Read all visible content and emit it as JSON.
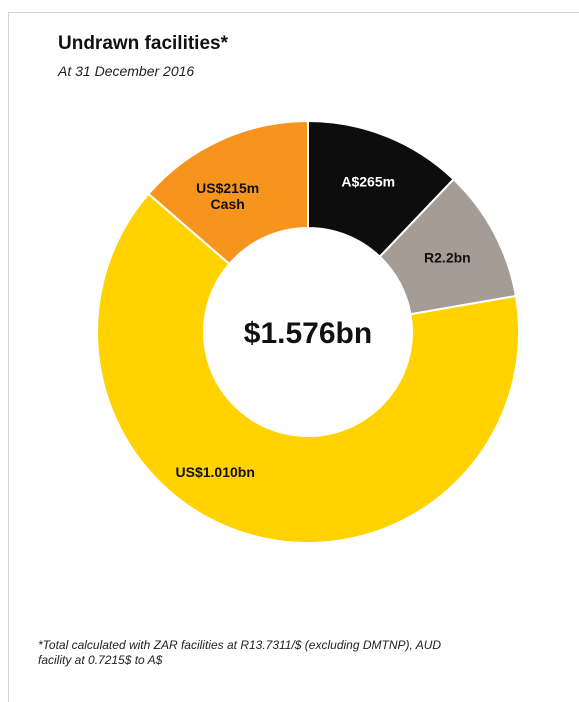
{
  "chart_data": {
    "type": "pie",
    "variant": "donut",
    "title": "Undrawn facilities*",
    "subtitle": "At 31 December 2016",
    "center_label": "$1.576bn",
    "total_usd_bn": 1.576,
    "slices": [
      {
        "label": "A$265m",
        "label_lines": [
          "A$265m"
        ],
        "value_usd_m": 191,
        "color": "#0d0d0d",
        "text_color": "#ffffff"
      },
      {
        "label": "R2.2bn",
        "label_lines": [
          "R2.2bn"
        ],
        "value_usd_m": 160,
        "color": "#a59d95",
        "text_color": "#111111"
      },
      {
        "label": "US$1.010bn",
        "label_lines": [
          "US$1.010bn"
        ],
        "value_usd_m": 1010,
        "color": "#ffd200",
        "text_color": "#111111"
      },
      {
        "label": "US$215m Cash",
        "label_lines": [
          "US$215m",
          "Cash"
        ],
        "value_usd_m": 215,
        "color": "#f7941d",
        "text_color": "#111111"
      }
    ],
    "start_angle_deg": 0,
    "direction": "clockwise",
    "legend": "none"
  },
  "footnote": {
    "line1": "*Total calculated with ZAR facilities at R13.7311/$ (excluding DMTNP), AUD",
    "line2": "facility at 0.7215$ to A$"
  }
}
